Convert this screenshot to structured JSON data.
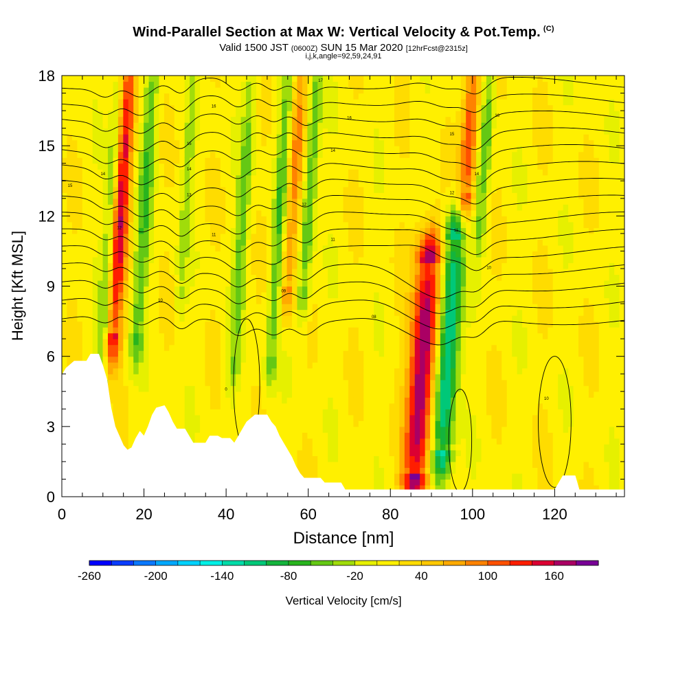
{
  "title": {
    "main": "Wind-Parallel Section at Max W: Vertical Velocity & Pot.Temp.",
    "copyright": "(C)",
    "valid_prefix": "Valid 1500 JST",
    "utc": "(0600Z)",
    "date": "SUN 15 Mar 2020",
    "forecast": "[12hrFcst@2315z]",
    "indices": "i,j,k,angle=92,59,24,91"
  },
  "chart_data": {
    "type": "heatmap",
    "xlabel": "Distance [nm]",
    "ylabel": "Height [Kft MSL]",
    "xlim": [
      0,
      137
    ],
    "ylim": [
      0,
      18
    ],
    "x_ticks": [
      0,
      20,
      40,
      60,
      80,
      100,
      120
    ],
    "y_ticks": [
      0,
      3,
      6,
      9,
      12,
      15,
      18
    ],
    "colorbar": {
      "label": "Vertical Velocity [cm/s]",
      "tick_labels": [
        -260,
        -200,
        -140,
        -80,
        -20,
        40,
        100,
        160
      ],
      "bins": [
        -260,
        -240,
        -220,
        -200,
        -180,
        -160,
        -140,
        -120,
        -100,
        -80,
        -60,
        -40,
        -20,
        0,
        20,
        40,
        60,
        80,
        100,
        120,
        140,
        160,
        180
      ],
      "colors": [
        "#0000ff",
        "#0a3cff",
        "#0a78ff",
        "#00a8ff",
        "#00d2ff",
        "#00f0e6",
        "#00dca8",
        "#00c878",
        "#14b43c",
        "#28b41e",
        "#64c814",
        "#a0dc0a",
        "#e6f000",
        "#fff000",
        "#ffdc00",
        "#ffc800",
        "#ffaa00",
        "#ff8200",
        "#ff5000",
        "#ff1e00",
        "#dc0032",
        "#aa0064",
        "#780096"
      ]
    },
    "velocity_features": [
      {
        "x": 13,
        "z_range": [
          7,
          18
        ],
        "w": 150,
        "width": 2.2
      },
      {
        "x": 11,
        "z_range": [
          5,
          18
        ],
        "w": -90,
        "width": 1.6
      },
      {
        "x": 19,
        "z_range": [
          7,
          18
        ],
        "w": -70,
        "width": 1.8
      },
      {
        "x": 29,
        "z_range": [
          9,
          18
        ],
        "w": -40,
        "width": 1.4
      },
      {
        "x": 43,
        "z_range": [
          6,
          18
        ],
        "w": -60,
        "width": 1.6
      },
      {
        "x": 52,
        "z_range": [
          6,
          18
        ],
        "w": -70,
        "width": 1.6
      },
      {
        "x": 55,
        "z_range": [
          9,
          18
        ],
        "w": 80,
        "width": 1.8
      },
      {
        "x": 59,
        "z_range": [
          9,
          18
        ],
        "w": -80,
        "width": 1.6
      },
      {
        "x": 89,
        "z_range": [
          1,
          10
        ],
        "w": 180,
        "width": 3.2
      },
      {
        "x": 95,
        "z_range": [
          2,
          11
        ],
        "w": -150,
        "width": 2.6
      },
      {
        "x": 97,
        "z_range": [
          13,
          18
        ],
        "w": 120,
        "width": 2.0
      },
      {
        "x": 101,
        "z_range": [
          12,
          18
        ],
        "w": -70,
        "width": 1.6
      }
    ],
    "theta_contour_labels": [
      {
        "x": 2,
        "z": 13.3,
        "text": "15"
      },
      {
        "x": 10,
        "z": 13.8,
        "text": "14"
      },
      {
        "x": 14,
        "z": 11.5,
        "text": "12"
      },
      {
        "x": 24,
        "z": 8.4,
        "text": "10"
      },
      {
        "x": 31,
        "z": 15.1,
        "text": "15"
      },
      {
        "x": 31,
        "z": 14,
        "text": "14"
      },
      {
        "x": 31,
        "z": 12.9,
        "text": "13"
      },
      {
        "x": 37,
        "z": 16.7,
        "text": "16"
      },
      {
        "x": 37,
        "z": 11.2,
        "text": "11"
      },
      {
        "x": 54,
        "z": 8.8,
        "text": "09"
      },
      {
        "x": 59,
        "z": 12.5,
        "text": "12"
      },
      {
        "x": 63,
        "z": 17.8,
        "text": "17"
      },
      {
        "x": 66,
        "z": 14.8,
        "text": "14"
      },
      {
        "x": 66,
        "z": 11,
        "text": "11"
      },
      {
        "x": 70,
        "z": 16.2,
        "text": "16"
      },
      {
        "x": 76,
        "z": 7.7,
        "text": "08"
      },
      {
        "x": 95,
        "z": 15.5,
        "text": "15"
      },
      {
        "x": 95,
        "z": 13,
        "text": "12"
      },
      {
        "x": 96,
        "z": 11.4,
        "text": "11"
      },
      {
        "x": 101,
        "z": 13.8,
        "text": "14"
      },
      {
        "x": 104,
        "z": 9.8,
        "text": "10"
      },
      {
        "x": 106,
        "z": 16.3,
        "text": "16"
      },
      {
        "x": 118,
        "z": 4.2,
        "text": "10"
      },
      {
        "x": 40,
        "z": 4.6,
        "text": "0"
      }
    ],
    "terrain": [
      [
        0,
        5.2
      ],
      [
        1,
        5.5
      ],
      [
        3,
        5.8
      ],
      [
        6,
        5.8
      ],
      [
        7,
        6.1
      ],
      [
        9,
        6.1
      ],
      [
        10,
        5.6
      ],
      [
        11,
        5.0
      ],
      [
        12,
        3.8
      ],
      [
        13,
        3.0
      ],
      [
        14,
        2.6
      ],
      [
        15,
        2.2
      ],
      [
        16,
        2.0
      ],
      [
        17,
        2.1
      ],
      [
        18,
        2.5
      ],
      [
        19,
        2.8
      ],
      [
        20,
        2.6
      ],
      [
        21,
        3.0
      ],
      [
        22,
        3.5
      ],
      [
        23,
        3.8
      ],
      [
        25,
        3.9
      ],
      [
        26,
        3.6
      ],
      [
        27,
        3.2
      ],
      [
        28,
        2.9
      ],
      [
        30,
        2.9
      ],
      [
        31,
        2.6
      ],
      [
        32,
        2.3
      ],
      [
        35,
        2.3
      ],
      [
        36,
        2.6
      ],
      [
        38,
        2.6
      ],
      [
        39,
        2.5
      ],
      [
        41,
        2.5
      ],
      [
        42,
        2.3
      ],
      [
        43,
        2.6
      ],
      [
        44,
        2.9
      ],
      [
        45,
        3.2
      ],
      [
        47,
        3.5
      ],
      [
        50,
        3.5
      ],
      [
        51,
        3.2
      ],
      [
        52,
        3.0
      ],
      [
        53,
        2.6
      ],
      [
        54,
        2.3
      ],
      [
        55,
        2.0
      ],
      [
        56,
        1.7
      ],
      [
        57,
        1.3
      ],
      [
        58,
        1.0
      ],
      [
        59,
        0.8
      ],
      [
        60,
        0.8
      ],
      [
        63,
        0.8
      ],
      [
        64,
        0.6
      ],
      [
        68,
        0.6
      ],
      [
        69,
        0.3
      ],
      [
        70,
        0.3
      ],
      [
        79,
        0.3
      ],
      [
        120,
        0.3
      ],
      [
        121,
        0.6
      ],
      [
        122,
        0.9
      ],
      [
        125,
        0.9
      ],
      [
        126,
        0.3
      ],
      [
        137,
        0.3
      ]
    ]
  }
}
